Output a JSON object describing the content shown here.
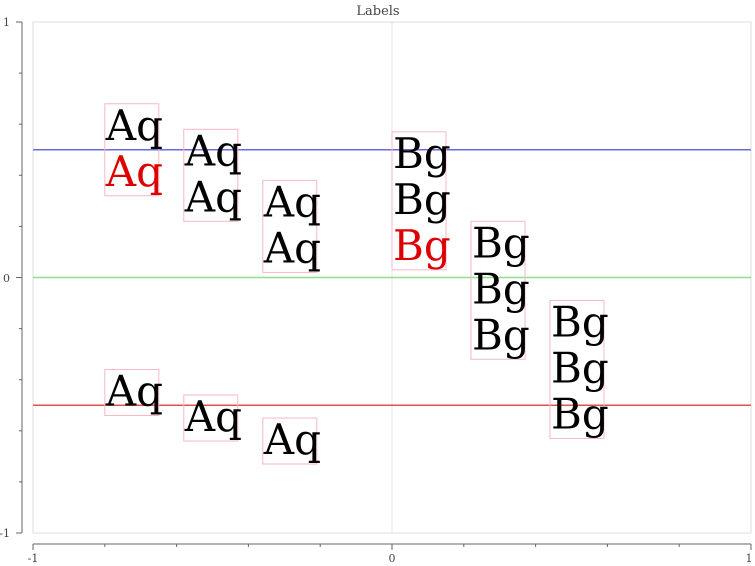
{
  "chart_data": {
    "type": "scatter",
    "title": "Labels",
    "xlabel": "",
    "ylabel": "",
    "xlim": [
      -1,
      1
    ],
    "ylim": [
      -1,
      1
    ],
    "x_tick_labels": [
      "-1",
      "0",
      "1"
    ],
    "y_tick_labels": [
      "-1",
      "0",
      "1"
    ],
    "x_ticks": [
      -1,
      -0.8,
      -0.6,
      -0.4,
      -0.2,
      0,
      0.2,
      0.4,
      0.6,
      0.8,
      1
    ],
    "y_ticks": [
      -1,
      -0.8,
      -0.6,
      -0.4,
      -0.2,
      0,
      0.2,
      0.4,
      0.6,
      0.8,
      1
    ],
    "grid": "x=0 vertical line only",
    "hlines": [
      {
        "y": 0.5,
        "color": "#6a6ae0"
      },
      {
        "y": 0,
        "color": "#8ee08e"
      },
      {
        "y": -0.5,
        "color": "#e05050"
      }
    ],
    "label_groups": [
      {
        "x": -0.8,
        "y": 0.5,
        "valign": "middle",
        "lines": [
          {
            "text": "Aq",
            "color": "#000000"
          },
          {
            "text": "Aq",
            "color": "#dd0000"
          }
        ]
      },
      {
        "x": -0.58,
        "y": 0.4,
        "valign": "middle",
        "lines": [
          {
            "text": "Aq",
            "color": "#000000"
          },
          {
            "text": "Aq",
            "color": "#000000"
          }
        ]
      },
      {
        "x": -0.36,
        "y": 0.2,
        "valign": "middle",
        "lines": [
          {
            "text": "Aq",
            "color": "#000000"
          },
          {
            "text": "Aq",
            "color": "#000000"
          }
        ]
      },
      {
        "x": 0,
        "y": 0.3,
        "valign": "middle",
        "lines": [
          {
            "text": "Bg",
            "color": "#000000"
          },
          {
            "text": "Bg",
            "color": "#000000"
          },
          {
            "text": "Bg",
            "color": "#dd0000"
          }
        ]
      },
      {
        "x": 0.22,
        "y": -0.05,
        "valign": "middle",
        "lines": [
          {
            "text": "Bg",
            "color": "#000000"
          },
          {
            "text": "Bg",
            "color": "#000000"
          },
          {
            "text": "Bg",
            "color": "#000000"
          }
        ]
      },
      {
        "x": 0.44,
        "y": -0.36,
        "valign": "middle",
        "lines": [
          {
            "text": "Bg",
            "color": "#000000"
          },
          {
            "text": "Bg",
            "color": "#000000"
          },
          {
            "text": "Bg",
            "color": "#000000"
          }
        ]
      },
      {
        "x": -0.8,
        "y": -0.45,
        "valign": "middle",
        "lines": [
          {
            "text": "Aq",
            "color": "#000000"
          }
        ]
      },
      {
        "x": -0.58,
        "y": -0.55,
        "valign": "middle",
        "lines": [
          {
            "text": "Aq",
            "color": "#000000"
          }
        ]
      },
      {
        "x": -0.36,
        "y": -0.64,
        "valign": "middle",
        "lines": [
          {
            "text": "Aq",
            "color": "#000000"
          }
        ]
      }
    ]
  }
}
